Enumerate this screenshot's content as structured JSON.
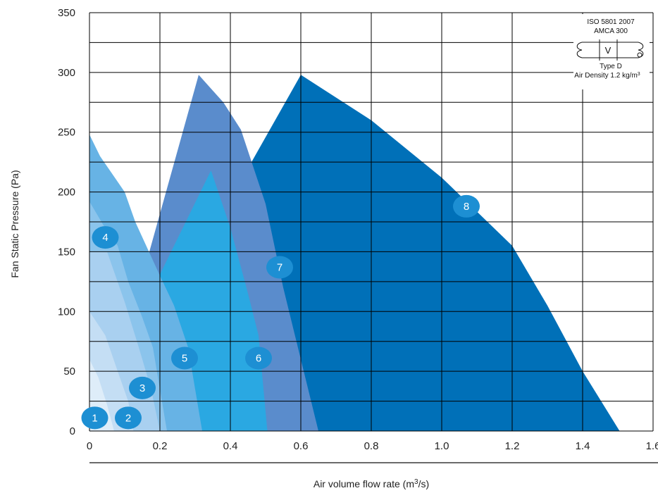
{
  "chart_data": {
    "type": "area",
    "xlabel": "Air volume flow rate (m",
    "xlabel_sup": "3",
    "xlabel_end": "/s)",
    "ylabel": "Fan Static Pressure (Pa)",
    "xlim": [
      0,
      1.6
    ],
    "ylim": [
      0,
      350
    ],
    "x_ticks": [
      "0",
      "0.2",
      "0.4",
      "0.6",
      "0.8",
      "1.0",
      "1.2",
      "1.4",
      "1.6"
    ],
    "x_tick_values": [
      0,
      0.2,
      0.4,
      0.6,
      0.8,
      1.0,
      1.2,
      1.4,
      1.6
    ],
    "y_ticks": [
      "0",
      "50",
      "100",
      "150",
      "200",
      "250",
      "300",
      "350"
    ],
    "y_tick_values": [
      0,
      50,
      100,
      150,
      200,
      250,
      300,
      350
    ],
    "grid": true,
    "series": [
      {
        "label": "8",
        "color": "#0070b8",
        "points": [
          [
            0.46,
            225
          ],
          [
            0.6,
            298
          ],
          [
            0.8,
            260
          ],
          [
            1.0,
            212
          ],
          [
            1.2,
            155
          ],
          [
            1.3,
            105
          ],
          [
            1.4,
            50
          ],
          [
            1.505,
            0
          ],
          [
            0.46,
            0
          ]
        ],
        "label_at": [
          1.07,
          188
        ]
      },
      {
        "label": "7",
        "color": "#5a8ccc",
        "points": [
          [
            0.17,
            150
          ],
          [
            0.31,
            298
          ],
          [
            0.38,
            275
          ],
          [
            0.43,
            252
          ],
          [
            0.5,
            190
          ],
          [
            0.55,
            120
          ],
          [
            0.6,
            60
          ],
          [
            0.65,
            0
          ],
          [
            0.17,
            0
          ]
        ],
        "label_at": [
          0.54,
          137
        ]
      },
      {
        "label": "6",
        "color": "#2aa8e2",
        "points": [
          [
            0.19,
            125
          ],
          [
            0.345,
            218
          ],
          [
            0.4,
            170
          ],
          [
            0.45,
            115
          ],
          [
            0.48,
            80
          ],
          [
            0.505,
            0
          ],
          [
            0.19,
            0
          ]
        ],
        "label_at": [
          0.48,
          61
        ]
      },
      {
        "label": "5",
        "color": "#67b3e5",
        "points": [
          [
            0,
            248
          ],
          [
            0.03,
            230
          ],
          [
            0.1,
            200
          ],
          [
            0.13,
            175
          ],
          [
            0.2,
            130
          ],
          [
            0.24,
            105
          ],
          [
            0.28,
            70
          ],
          [
            0.3,
            35
          ],
          [
            0.32,
            0
          ],
          [
            0,
            0
          ]
        ],
        "label_at": [
          0.27,
          61
        ]
      },
      {
        "label": "4",
        "color": "#8bc4ec",
        "points": [
          [
            0,
            192
          ],
          [
            0.04,
            172
          ],
          [
            0.08,
            155
          ],
          [
            0.11,
            125
          ],
          [
            0.15,
            95
          ],
          [
            0.18,
            70
          ],
          [
            0.2,
            35
          ],
          [
            0.22,
            0
          ],
          [
            0,
            0
          ]
        ],
        "label_at": [
          0.045,
          162
        ]
      },
      {
        "label": "3",
        "color": "#a9d0f0",
        "points": [
          [
            0,
            150
          ],
          [
            0.05,
            150
          ],
          [
            0.1,
            108
          ],
          [
            0.14,
            70
          ],
          [
            0.175,
            35
          ],
          [
            0.2,
            0
          ],
          [
            0,
            0
          ]
        ],
        "label_at": [
          0.15,
          36
        ]
      },
      {
        "label": "2",
        "color": "#c4def4",
        "points": [
          [
            0,
            100
          ],
          [
            0.045,
            80
          ],
          [
            0.08,
            50
          ],
          [
            0.11,
            25
          ],
          [
            0.125,
            0
          ],
          [
            0,
            0
          ]
        ],
        "label_at": [
          0.11,
          11
        ]
      },
      {
        "label": "1",
        "color": "#deedf9",
        "points": [
          [
            0,
            60
          ],
          [
            0.025,
            45
          ],
          [
            0.05,
            22
          ],
          [
            0.07,
            0
          ],
          [
            0,
            0
          ]
        ],
        "label_at": [
          0.015,
          11
        ]
      }
    ],
    "label_circle_color": "#1d8fd3",
    "legend": {
      "lines": [
        "ISO 5801 2007",
        "AMCA 300",
        "V",
        "Type D",
        "Air Density 1.2 kg/m",
        "3"
      ],
      "placement": "top-right"
    }
  }
}
